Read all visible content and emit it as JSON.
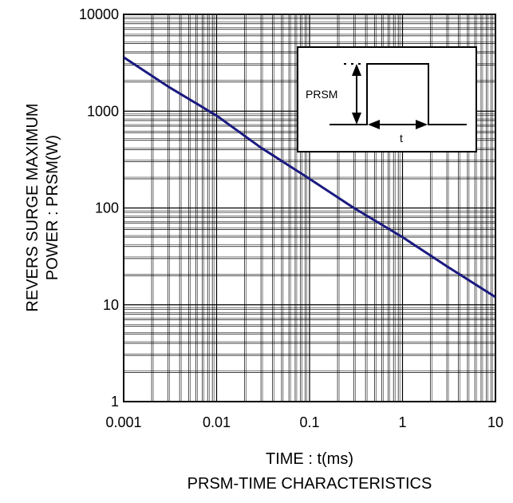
{
  "chart_data": {
    "type": "line",
    "title": "PRSM-TIME CHARACTERISTICS",
    "xlabel": "TIME : t(ms)",
    "ylabel_lines": [
      "REVERS SURGE MAXIMUM",
      "POWER : PRSM(W)"
    ],
    "x_scale": "log",
    "y_scale": "log",
    "xlim": [
      0.001,
      10
    ],
    "ylim": [
      1,
      10000
    ],
    "x_ticks": [
      "0.001",
      "0.01",
      "0.1",
      "1",
      "10"
    ],
    "y_ticks": [
      "1",
      "10",
      "100",
      "1000",
      "10000"
    ],
    "grid": true,
    "series": [
      {
        "color": "#1a1a80",
        "x": [
          0.001,
          0.003,
          0.01,
          0.03,
          0.1,
          0.3,
          1,
          3,
          10
        ],
        "y": [
          3600,
          1800,
          900,
          420,
          200,
          100,
          50,
          25,
          12
        ]
      }
    ],
    "inset": {
      "label_prsm": "PRSM",
      "label_t": "t"
    }
  }
}
